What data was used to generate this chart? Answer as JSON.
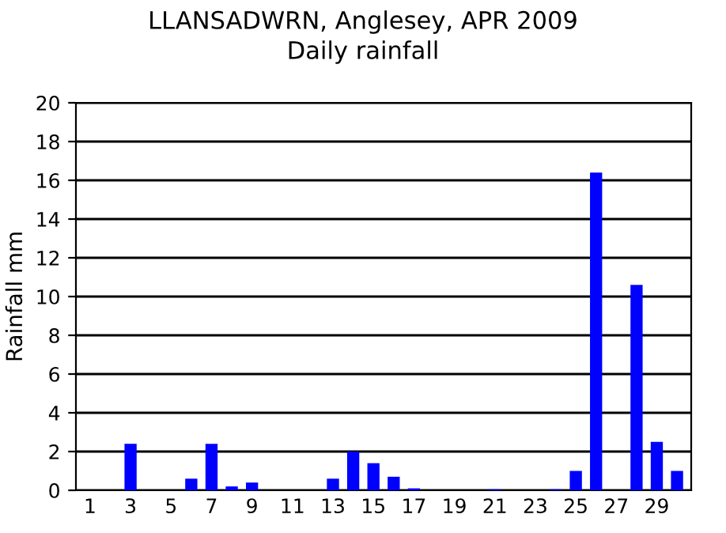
{
  "chart_data": {
    "type": "bar",
    "title": "LLANSADWRN, Anglesey, APR 2009",
    "subtitle": "Daily rainfall",
    "ylabel": "Rainfall mm",
    "categories": [
      "1",
      null,
      "3",
      null,
      "5",
      null,
      "7",
      null,
      "9",
      null,
      "11",
      null,
      "13",
      null,
      "15",
      null,
      "17",
      null,
      "19",
      null,
      "21",
      null,
      "23",
      null,
      "25",
      null,
      "27",
      null,
      "29",
      null
    ],
    "values": [
      0,
      0,
      2.4,
      0,
      0,
      0.6,
      2.4,
      0.2,
      0.4,
      0,
      0,
      0,
      0.6,
      2.0,
      1.4,
      0.7,
      0.1,
      0,
      0,
      0,
      0.05,
      0,
      0,
      0.05,
      1.0,
      16.4,
      0,
      10.6,
      2.5,
      1.0
    ],
    "color": "#0000ff",
    "ylim": [
      0,
      20
    ],
    "yticks": [
      0,
      2,
      4,
      6,
      8,
      10,
      12,
      14,
      16,
      18,
      20
    ],
    "grid": "y"
  }
}
